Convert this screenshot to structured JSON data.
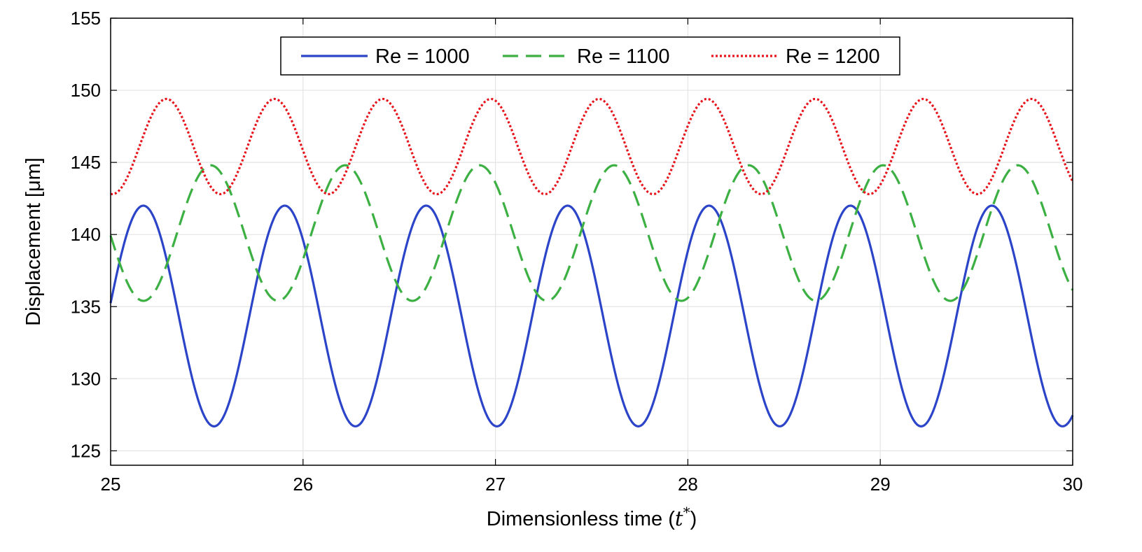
{
  "chart_data": {
    "type": "line",
    "title": "",
    "xlabel": "Dimensionless time",
    "xlabel_symbol": "t",
    "xlabel_superscript": "*",
    "ylabel": "Displacement [μm]",
    "xlim": [
      25,
      30
    ],
    "ylim": [
      124,
      155
    ],
    "xticks": [
      25,
      26,
      27,
      28,
      29,
      30
    ],
    "yticks": [
      125,
      130,
      135,
      140,
      145,
      150,
      155
    ],
    "grid": true,
    "legend_position": "top-center",
    "series": [
      {
        "name": "Re = 1000",
        "style": "solid",
        "color": "#2c44c8",
        "mean": 134.35,
        "amplitude": 7.65,
        "period": 0.735,
        "peak_time": 25.17,
        "x_start": 25,
        "x_end": 30
      },
      {
        "name": "Re = 1100",
        "style": "dashed",
        "color": "#3cb043",
        "mean": 140.1,
        "amplitude": 4.7,
        "period": 0.699,
        "peak_time": 25.52,
        "x_start": 25,
        "x_end": 30
      },
      {
        "name": "Re = 1200",
        "style": "dotted",
        "color": "#e8141c",
        "mean": 146.1,
        "amplitude": 3.3,
        "period": 0.562,
        "peak_time": 25.29,
        "x_start": 25,
        "x_end": 30
      }
    ]
  }
}
